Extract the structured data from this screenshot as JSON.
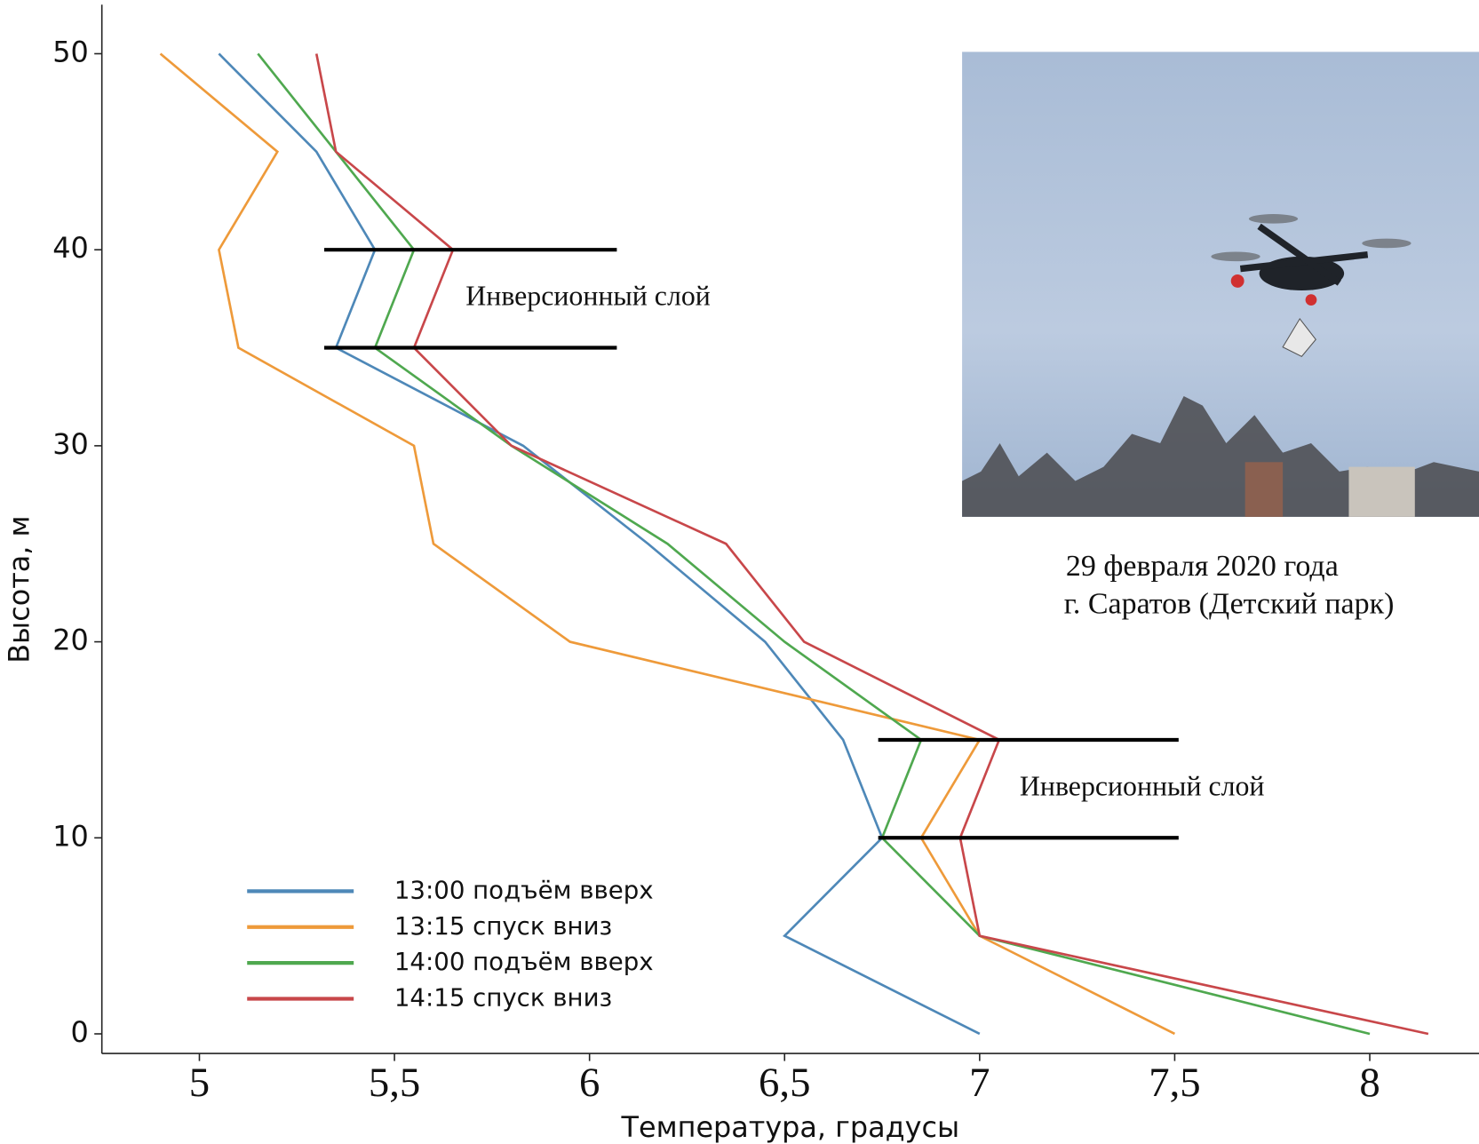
{
  "chart_data": {
    "type": "line",
    "xlabel": "Температура, градусы",
    "ylabel": "Высота, м",
    "y": [
      0,
      5,
      10,
      15,
      20,
      25,
      30,
      35,
      40,
      45,
      50
    ],
    "series": [
      {
        "name": "13:00 подъём вверх",
        "color": "#4e88b8",
        "values": [
          7.0,
          6.5,
          6.75,
          6.65,
          6.45,
          6.15,
          5.83,
          5.35,
          5.45,
          5.3,
          5.05
        ]
      },
      {
        "name": "13:15 спуск вниз",
        "color": "#ee9a3a",
        "values": [
          7.5,
          7.0,
          6.85,
          7.0,
          5.95,
          5.6,
          5.55,
          5.1,
          5.05,
          5.2,
          4.9
        ]
      },
      {
        "name": "14:00 подъём вверх",
        "color": "#4fa84f",
        "values": [
          8.0,
          7.0,
          6.75,
          6.85,
          6.5,
          6.2,
          5.8,
          5.45,
          5.55,
          5.35,
          5.15
        ]
      },
      {
        "name": "14:15 спуск вниз",
        "color": "#c8474a",
        "values": [
          8.15,
          7.0,
          6.95,
          7.05,
          6.55,
          6.35,
          5.8,
          5.55,
          5.65,
          5.35,
          5.3
        ]
      }
    ],
    "xlim": [
      4.75,
      8.28
    ],
    "ylim": [
      -1,
      52.5
    ],
    "xticks": [
      5,
      {
        "value": 5.5,
        "label": "5,5"
      },
      6,
      {
        "value": 6.5,
        "label": "6,5"
      },
      7,
      {
        "value": 7.5,
        "label": "7,5"
      },
      8
    ],
    "yticks": [
      0,
      10,
      20,
      30,
      40,
      50
    ],
    "legend": "lower left",
    "bands": [
      {
        "label": "Инверсионный слой",
        "y": [
          35,
          40
        ],
        "x": [
          5.32,
          6.07
        ]
      },
      {
        "label": "Инверсионный слой",
        "y": [
          10,
          15
        ],
        "x": [
          6.74,
          7.51
        ]
      }
    ],
    "caption": [
      "29 февраля 2020 года",
      "г. Саратов (Детский парк)"
    ]
  }
}
